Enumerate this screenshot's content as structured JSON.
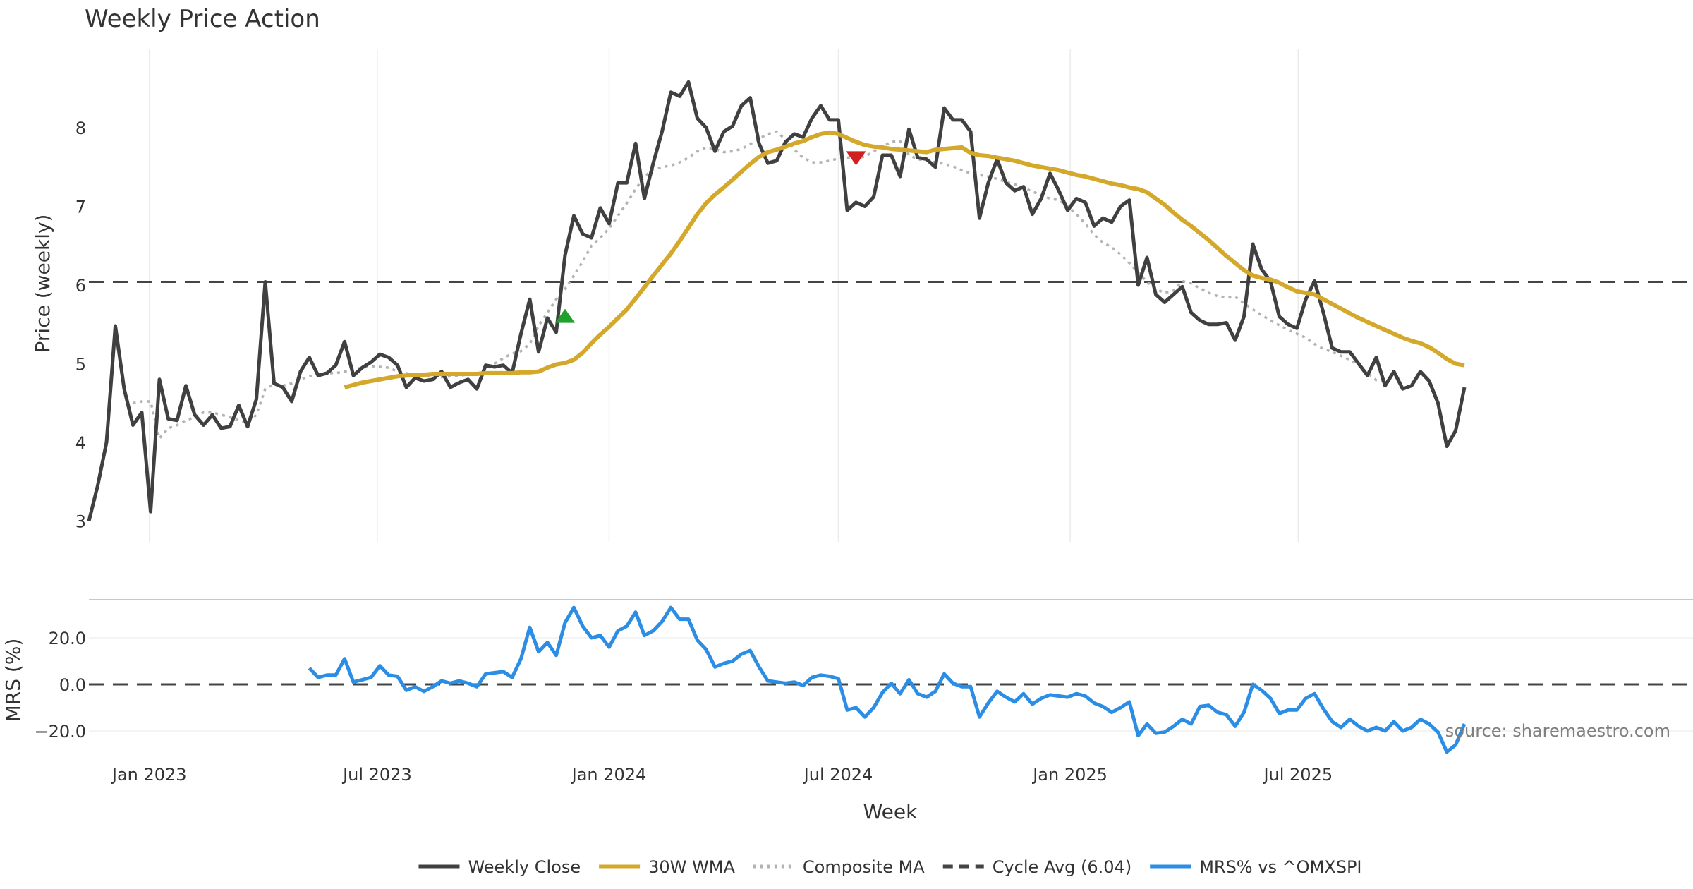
{
  "chart_data": [
    {
      "type": "line",
      "title": "Weekly Price Action",
      "xlabel": "",
      "ylabel": "Price (weekly)",
      "ylim": [
        2.7,
        8.9
      ],
      "yticks": [
        3,
        4,
        5,
        6,
        7,
        8
      ],
      "grid": "vertical",
      "x_start": "2022-11-14",
      "x_step_days": 7,
      "series": [
        {
          "name": "Weekly Close",
          "color": "#404040",
          "style": "solid",
          "values": [
            3.0,
            3.45,
            4.0,
            5.48,
            4.68,
            4.22,
            4.38,
            3.12,
            4.8,
            4.3,
            4.28,
            4.72,
            4.35,
            4.22,
            4.35,
            4.18,
            4.2,
            4.47,
            4.2,
            4.55,
            6.04,
            4.75,
            4.7,
            4.52,
            4.9,
            5.08,
            4.85,
            4.88,
            4.98,
            5.28,
            4.85,
            4.95,
            5.02,
            5.12,
            5.08,
            4.98,
            4.7,
            4.82,
            4.78,
            4.8,
            4.9,
            4.7,
            4.76,
            4.8,
            4.68,
            4.98,
            4.96,
            4.98,
            4.88,
            5.38,
            5.82,
            5.15,
            5.58,
            5.4,
            6.38,
            6.88,
            6.65,
            6.6,
            6.98,
            6.78,
            7.3,
            7.3,
            7.8,
            7.1,
            7.55,
            7.95,
            8.45,
            8.4,
            8.58,
            8.12,
            8.0,
            7.7,
            7.95,
            8.02,
            8.28,
            8.38,
            7.8,
            7.55,
            7.58,
            7.82,
            7.92,
            7.88,
            8.12,
            8.28,
            8.1,
            8.1,
            6.95,
            7.05,
            7.0,
            7.12,
            7.65,
            7.65,
            7.38,
            7.98,
            7.62,
            7.6,
            7.5,
            8.25,
            8.1,
            8.1,
            7.95,
            6.85,
            7.3,
            7.6,
            7.3,
            7.2,
            7.25,
            6.9,
            7.1,
            7.42,
            7.2,
            6.95,
            7.1,
            7.05,
            6.75,
            6.85,
            6.8,
            7.0,
            7.08,
            6.0,
            6.35,
            5.88,
            5.78,
            5.88,
            5.98,
            5.65,
            5.55,
            5.5,
            5.5,
            5.52,
            5.3,
            5.6,
            6.52,
            6.2,
            6.05,
            5.6,
            5.5,
            5.45,
            5.82,
            6.05,
            5.65,
            5.2,
            5.15,
            5.15,
            5.0,
            4.85,
            5.08,
            4.72,
            4.9,
            4.68,
            4.72,
            4.9,
            4.78,
            4.5,
            3.95,
            4.15,
            4.7
          ]
        },
        {
          "name": "30W WMA",
          "color": "#d4a82a",
          "style": "solid",
          "start_index": 29,
          "values": [
            4.7,
            4.73,
            4.76,
            4.78,
            4.8,
            4.82,
            4.84,
            4.85,
            4.86,
            4.86,
            4.87,
            4.87,
            4.87,
            4.87,
            4.87,
            4.87,
            4.88,
            4.88,
            4.88,
            4.88,
            4.89,
            4.89,
            4.9,
            4.95,
            4.99,
            5.01,
            5.05,
            5.14,
            5.26,
            5.37,
            5.47,
            5.58,
            5.69,
            5.83,
            5.97,
            6.12,
            6.26,
            6.4,
            6.56,
            6.73,
            6.9,
            7.04,
            7.15,
            7.24,
            7.34,
            7.44,
            7.54,
            7.63,
            7.69,
            7.72,
            7.76,
            7.8,
            7.83,
            7.88,
            7.92,
            7.94,
            7.92,
            7.87,
            7.82,
            7.78,
            7.76,
            7.75,
            7.73,
            7.72,
            7.71,
            7.7,
            7.69,
            7.72,
            7.73,
            7.74,
            7.75,
            7.68,
            7.65,
            7.64,
            7.62,
            7.6,
            7.58,
            7.55,
            7.52,
            7.5,
            7.48,
            7.46,
            7.43,
            7.4,
            7.38,
            7.35,
            7.32,
            7.29,
            7.27,
            7.24,
            7.22,
            7.18,
            7.1,
            7.02,
            6.92,
            6.83,
            6.75,
            6.66,
            6.57,
            6.47,
            6.37,
            6.28,
            6.19,
            6.12,
            6.09,
            6.07,
            6.03,
            5.97,
            5.92,
            5.9,
            5.88,
            5.82,
            5.76,
            5.7,
            5.64,
            5.58,
            5.53,
            5.48,
            5.43,
            5.38,
            5.33,
            5.29,
            5.26,
            5.21,
            5.14,
            5.06,
            5.0,
            4.98
          ]
        },
        {
          "name": "Composite MA",
          "color": "#b3b3b3",
          "style": "dotted",
          "start_index": 5,
          "values": [
            4.5,
            4.52,
            4.52,
            4.05,
            4.18,
            4.22,
            4.28,
            4.32,
            4.38,
            4.38,
            4.35,
            4.32,
            4.28,
            4.25,
            4.35,
            4.68,
            4.74,
            4.72,
            4.75,
            4.8,
            4.84,
            4.86,
            4.88,
            4.88,
            4.9,
            4.93,
            4.95,
            4.97,
            4.96,
            4.95,
            4.9,
            4.88,
            4.85,
            4.85,
            4.83,
            4.83,
            4.84,
            4.85,
            4.86,
            4.88,
            4.92,
            5.0,
            5.07,
            5.13,
            5.16,
            5.25,
            5.48,
            5.65,
            5.82,
            5.95,
            6.12,
            6.3,
            6.5,
            6.6,
            6.72,
            6.88,
            7.04,
            7.22,
            7.38,
            7.47,
            7.5,
            7.52,
            7.56,
            7.62,
            7.7,
            7.75,
            7.73,
            7.69,
            7.7,
            7.73,
            7.79,
            7.86,
            7.92,
            7.95,
            7.85,
            7.72,
            7.62,
            7.56,
            7.56,
            7.58,
            7.61,
            7.62,
            7.62,
            7.63,
            7.7,
            7.76,
            7.82,
            7.83,
            7.65,
            7.6,
            7.58,
            7.56,
            7.54,
            7.51,
            7.46,
            7.42,
            7.4,
            7.38,
            7.35,
            7.31,
            7.28,
            7.24,
            7.19,
            7.14,
            7.1,
            7.08,
            7.0,
            6.9,
            6.78,
            6.64,
            6.54,
            6.48,
            6.39,
            6.28,
            6.16,
            6.04,
            5.95,
            5.9,
            5.93,
            6.05,
            6.02,
            5.96,
            5.9,
            5.86,
            5.84,
            5.85,
            5.77,
            5.69,
            5.62,
            5.55,
            5.49,
            5.43,
            5.38,
            5.33,
            5.25,
            5.19,
            5.15,
            5.1,
            5.05,
            4.98,
            4.88,
            4.79,
            4.77
          ]
        },
        {
          "name": "Cycle Avg (6.04)",
          "color": "#444444",
          "style": "dashed",
          "constant": 6.04
        }
      ],
      "markers": [
        {
          "type": "buy",
          "shape": "triangle-up",
          "color": "#22a02c",
          "x_index": 54,
          "y": 5.6
        },
        {
          "type": "sell",
          "shape": "triangle-down",
          "color": "#d11f1f",
          "x_index": 87,
          "y": 7.62
        }
      ]
    },
    {
      "type": "line",
      "xlabel": "Week",
      "ylabel": "MRS (%)",
      "ylim": [
        -30,
        35
      ],
      "yticks": [
        -20,
        0,
        20
      ],
      "ytick_labels": [
        "−20.0",
        "0.0",
        "20.0"
      ],
      "xticks": [
        "Jan 2023",
        "Jul 2023",
        "Jan 2024",
        "Jul 2024",
        "Jan 2025",
        "Jul 2025"
      ],
      "xtick_dates": [
        "2023-01-01",
        "2023-07-01",
        "2024-01-01",
        "2024-07-01",
        "2025-01-01",
        "2025-07-01"
      ],
      "series": [
        {
          "name": "MRS% vs ^OMXSPI",
          "color": "#2c8de4",
          "style": "solid",
          "start_index": 25,
          "values": [
            7,
            3,
            4,
            4,
            11,
            1,
            2,
            3,
            8,
            4,
            3.5,
            -2.5,
            -1,
            -3,
            -1,
            1.5,
            0.5,
            1.5,
            0.5,
            -1,
            4.5,
            5,
            5.5,
            3,
            11,
            24.5,
            14,
            18,
            12.5,
            26.5,
            33,
            25,
            20,
            21,
            16,
            23,
            25,
            31,
            21,
            23,
            27,
            33,
            28,
            28,
            19,
            15,
            7.5,
            9,
            10,
            13,
            14.5,
            7.5,
            1.5,
            1,
            0.5,
            1,
            -0.5,
            3,
            4,
            3.5,
            2.5,
            -11,
            -10,
            -14,
            -10,
            -3.5,
            0.5,
            -4,
            2,
            -4,
            -5.5,
            -3,
            4.5,
            0.5,
            -1,
            -1,
            -14,
            -8,
            -3,
            -5.5,
            -7.5,
            -4,
            -8.5,
            -6,
            -4.5,
            -5,
            -5.5,
            -4,
            -5,
            -8,
            -9.5,
            -12,
            -10,
            -7.5,
            -22,
            -17,
            -21,
            -20.5,
            -18,
            -15,
            -17,
            -9.5,
            -9,
            -12,
            -13,
            -18,
            -12,
            0,
            -2.5,
            -6,
            -12.5,
            -11,
            -11,
            -6,
            -4,
            -10.5,
            -16,
            -18.5,
            -15,
            -18,
            -20,
            -18.5,
            -20,
            -16,
            -20,
            -18.5,
            -15,
            -17,
            -20.5,
            -29,
            -26,
            -17
          ]
        },
        {
          "name": "zero-line",
          "color": "#444444",
          "style": "dashed",
          "constant": 0
        }
      ]
    }
  ],
  "legend": [
    {
      "label": "Weekly Close",
      "color": "#404040",
      "style": "solid"
    },
    {
      "label": "30W WMA",
      "color": "#d4a82a",
      "style": "solid"
    },
    {
      "label": "Composite MA",
      "color": "#b3b3b3",
      "style": "dotted"
    },
    {
      "label": "Cycle Avg (6.04)",
      "color": "#444444",
      "style": "dashed"
    },
    {
      "label": "MRS% vs ^OMXSPI",
      "color": "#2c8de4",
      "style": "solid"
    }
  ],
  "source": "source: sharemaestro.com"
}
